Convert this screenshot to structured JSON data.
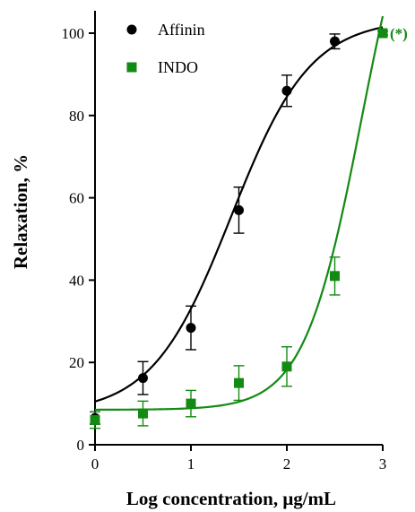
{
  "chart_data": {
    "type": "scatter",
    "title": "",
    "xlabel": "Log concentration, μg/mL",
    "ylabel": "Relaxation, %",
    "xlim": [
      0,
      3
    ],
    "ylim": [
      0,
      105
    ],
    "xticks": [
      0,
      1,
      2,
      3
    ],
    "yticks": [
      0,
      20,
      40,
      60,
      80,
      100
    ],
    "grid": false,
    "legend_position": "top-left",
    "series": [
      {
        "name": "Affinin",
        "color": "#000000",
        "marker": "circle",
        "fit": "sigmoid",
        "points": [
          {
            "x": 0,
            "y": 6.5,
            "err": 1.5
          },
          {
            "x": 0.5,
            "y": 16.2,
            "err": 4.0
          },
          {
            "x": 1,
            "y": 28.4,
            "err": 5.3
          },
          {
            "x": 1.5,
            "y": 57.0,
            "err": 5.6
          },
          {
            "x": 2,
            "y": 86.0,
            "err": 3.8
          },
          {
            "x": 2.5,
            "y": 98.0,
            "err": 1.8
          },
          {
            "x": 3,
            "y": 100.0,
            "err": 0.5
          }
        ]
      },
      {
        "name": "INDO",
        "color": "#138a13",
        "marker": "square",
        "fit": "sigmoid",
        "points": [
          {
            "x": 0,
            "y": 6.0,
            "err": 2.0
          },
          {
            "x": 0.5,
            "y": 7.6,
            "err": 3.0
          },
          {
            "x": 1,
            "y": 10.0,
            "err": 3.2
          },
          {
            "x": 1.5,
            "y": 15.0,
            "err": 4.2
          },
          {
            "x": 2,
            "y": 19.0,
            "err": 4.8
          },
          {
            "x": 2.5,
            "y": 41.0,
            "err": 4.6
          },
          {
            "x": 3,
            "y": 100.0,
            "err": 0.5
          }
        ]
      }
    ],
    "annotations": [
      {
        "text": "(*)",
        "x": 3,
        "y": 100,
        "color": "#138a13"
      }
    ]
  }
}
